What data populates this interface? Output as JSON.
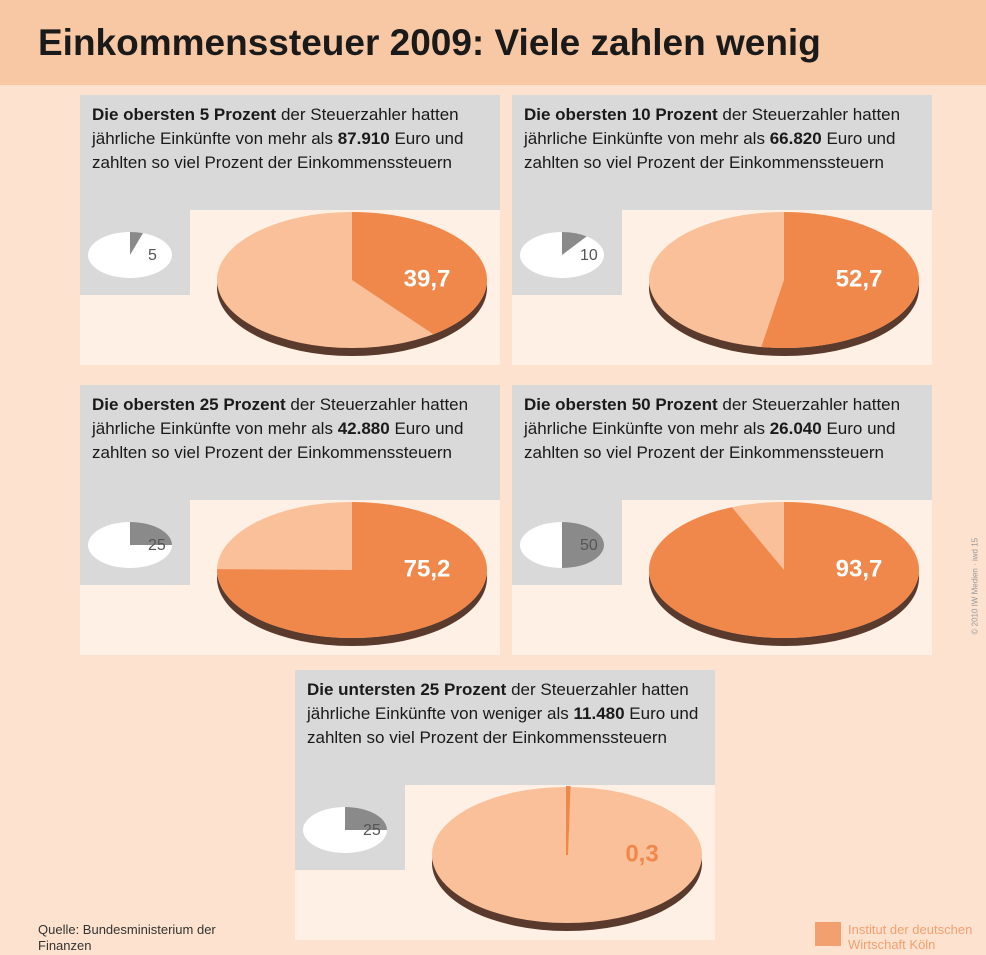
{
  "title": "Einkommenssteuer 2009: Viele zahlen wenig",
  "source": "Quelle: Bundesministerium der Finanzen",
  "publisher": "Institut der deutschen Wirtschaft Köln",
  "copyright": "© 2010 IW Medien · iwd 15",
  "chart_data": [
    {
      "type": "pie",
      "heading": "Die obersten 5 Prozent",
      "text": "der Steuerzahler hatten jährliche Einkünfte von mehr als",
      "income": "87.910",
      "text2": "Euro und zahlten so viel Prozent der Einkommenssteuern",
      "share_of_taxpayers": {
        "values": [
          5
        ],
        "value_labels": [
          "5"
        ]
      },
      "values": [
        39.7
      ],
      "value_labels": [
        "39,7"
      ],
      "color": "#f0884c"
    },
    {
      "type": "pie",
      "heading": "Die obersten 10 Prozent",
      "text": "der Steuerzahler hatten jährliche Einkünfte von mehr als",
      "income": "66.820",
      "text2": "Euro und zahlten so viel Prozent der Einkommenssteuern",
      "share_of_taxpayers": {
        "values": [
          10
        ],
        "value_labels": [
          "10"
        ]
      },
      "values": [
        52.7
      ],
      "value_labels": [
        "52,7"
      ],
      "color": "#f0884c"
    },
    {
      "type": "pie",
      "heading": "Die obersten 25 Prozent",
      "text": "der Steuerzahler hatten jährliche Einkünfte von mehr als",
      "income": "42.880",
      "text2": "Euro und zahlten so viel Prozent der Einkommenssteuern",
      "share_of_taxpayers": {
        "values": [
          25
        ],
        "value_labels": [
          "25"
        ]
      },
      "values": [
        75.2
      ],
      "value_labels": [
        "75,2"
      ],
      "color": "#f0884c"
    },
    {
      "type": "pie",
      "heading": "Die obersten 50 Prozent",
      "text": "der Steuerzahler hatten jährliche Einkünfte von mehr als",
      "income": "26.040",
      "text2": "Euro und zahlten so viel Prozent der Einkommenssteuern",
      "share_of_taxpayers": {
        "values": [
          50
        ],
        "value_labels": [
          "50"
        ]
      },
      "values": [
        93.7
      ],
      "value_labels": [
        "93,7"
      ],
      "color": "#f0884c"
    },
    {
      "type": "pie",
      "heading": "Die untersten 25 Prozent",
      "text": "der Steuerzahler hatten jährliche Einkünfte von weniger als",
      "income": "11.480",
      "text2": "Euro und zahlten so viel Prozent der Einkommenssteuern",
      "share_of_taxpayers": {
        "values": [
          25
        ],
        "value_labels": [
          "25"
        ]
      },
      "values": [
        0.3
      ],
      "value_labels": [
        "0,3"
      ],
      "color": "#f0884c"
    }
  ]
}
